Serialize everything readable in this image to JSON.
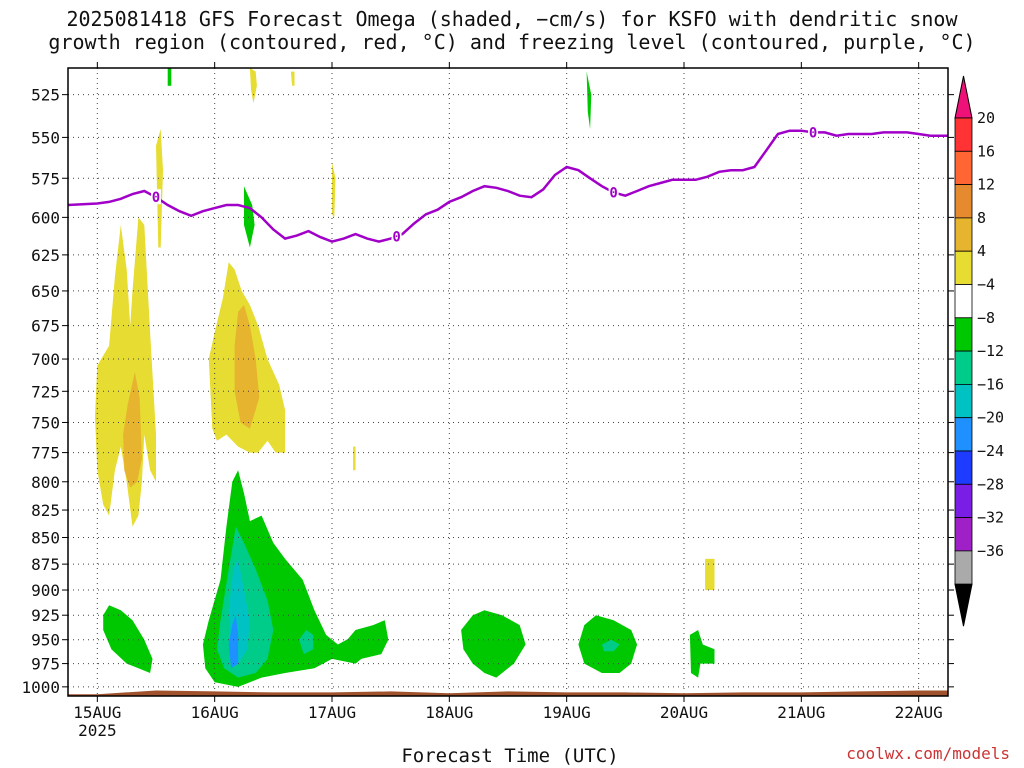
{
  "title_line1": "2025081418 GFS Forecast Omega (shaded, −cm/s) for KSFO with dendritic snow",
  "title_line2": "growth region (contoured, red, °C) and freezing level (contoured, purple, °C)",
  "credit": "coolwx.com/models",
  "chart_data": {
    "type": "heatmap",
    "title": "2025081418 GFS Forecast Omega (shaded, −cm/s) for KSFO with dendritic snow growth region (contoured, red, °C) and freezing level (contoured, purple, °C)",
    "xlabel": "Forecast Time (UTC)",
    "ylabel": "",
    "x_ticks": [
      {
        "label": "15AUG",
        "sublabel": "2025",
        "day": 15
      },
      {
        "label": "16AUG",
        "sublabel": "",
        "day": 16
      },
      {
        "label": "17AUG",
        "sublabel": "",
        "day": 17
      },
      {
        "label": "18AUG",
        "sublabel": "",
        "day": 18
      },
      {
        "label": "19AUG",
        "sublabel": "",
        "day": 19
      },
      {
        "label": "20AUG",
        "sublabel": "",
        "day": 20
      },
      {
        "label": "21AUG",
        "sublabel": "",
        "day": 21
      },
      {
        "label": "22AUG",
        "sublabel": "",
        "day": 22
      }
    ],
    "xlim": [
      14.75,
      22.25
    ],
    "y_ticks": [
      525,
      550,
      575,
      600,
      625,
      650,
      675,
      700,
      725,
      750,
      775,
      800,
      825,
      850,
      875,
      900,
      925,
      950,
      975,
      1000
    ],
    "ylim": [
      1010,
      510
    ],
    "y_scale": "log",
    "grid": true,
    "colorbar": {
      "labels": [
        "20",
        "16",
        "12",
        "8",
        "4",
        "−4",
        "−8",
        "−12",
        "−16",
        "−20",
        "−24",
        "−28",
        "−32",
        "−36"
      ],
      "colors": [
        "#ff3333",
        "#ff6633",
        "#e58a2e",
        "#e6b42e",
        "#e6dc32",
        "#ffffff",
        "#00c800",
        "#00cc8a",
        "#00c2c2",
        "#1e90ff",
        "#1e3cff",
        "#7a1ee6",
        "#a020c8",
        "#aaaaaa"
      ],
      "top_arrow_color": "#ee1177",
      "bottom_arrow_color": "#000000"
    },
    "freezing_level": {
      "label": "0",
      "color": "#a000c8",
      "x": [
        14.75,
        15.0,
        15.1,
        15.2,
        15.3,
        15.4,
        15.5,
        15.6,
        15.7,
        15.8,
        15.9,
        16.0,
        16.1,
        16.2,
        16.3,
        16.4,
        16.5,
        16.6,
        16.7,
        16.8,
        16.9,
        17.0,
        17.1,
        17.2,
        17.3,
        17.4,
        17.5,
        17.6,
        17.7,
        17.8,
        17.9,
        18.0,
        18.1,
        18.2,
        18.3,
        18.4,
        18.5,
        18.6,
        18.7,
        18.8,
        18.9,
        19.0,
        19.1,
        19.2,
        19.3,
        19.4,
        19.5,
        19.6,
        19.7,
        19.8,
        19.9,
        20.0,
        20.1,
        20.2,
        20.3,
        20.4,
        20.5,
        20.6,
        20.7,
        20.8,
        20.9,
        21.0,
        21.1,
        21.2,
        21.3,
        21.4,
        21.5,
        21.6,
        21.7,
        21.8,
        21.9,
        22.0,
        22.1,
        22.25
      ],
      "y": [
        592,
        591,
        590,
        588,
        585,
        583,
        587,
        592,
        596,
        599,
        596,
        594,
        592,
        592,
        594,
        600,
        608,
        614,
        612,
        609,
        613,
        616,
        614,
        611,
        614,
        616,
        614,
        611,
        604,
        598,
        595,
        590,
        587,
        583,
        580,
        581,
        583,
        586,
        587,
        582,
        573,
        568,
        570,
        575,
        580,
        584,
        586,
        583,
        580,
        578,
        576,
        576,
        576,
        574,
        571,
        570,
        570,
        568,
        558,
        548,
        546,
        546,
        547,
        547,
        549,
        548,
        548,
        548,
        547,
        547,
        547,
        548,
        549,
        549
      ]
    },
    "omega_regions": [
      {
        "value": 4,
        "color": "#e6dc32",
        "points": [
          [
            15.0,
            705
          ],
          [
            15.1,
            690
          ],
          [
            15.15,
            640
          ],
          [
            15.2,
            605
          ],
          [
            15.25,
            635
          ],
          [
            15.28,
            675
          ],
          [
            15.3,
            650
          ],
          [
            15.35,
            600
          ],
          [
            15.4,
            605
          ],
          [
            15.45,
            680
          ],
          [
            15.5,
            760
          ],
          [
            15.5,
            800
          ],
          [
            15.45,
            790
          ],
          [
            15.4,
            760
          ],
          [
            15.38,
            800
          ],
          [
            15.35,
            830
          ],
          [
            15.3,
            840
          ],
          [
            15.25,
            800
          ],
          [
            15.2,
            770
          ],
          [
            15.15,
            790
          ],
          [
            15.1,
            830
          ],
          [
            15.05,
            820
          ],
          [
            15.0,
            790
          ],
          [
            14.98,
            745
          ]
        ]
      },
      {
        "value": 8,
        "color": "#e6b42e",
        "points": [
          [
            15.22,
            760
          ],
          [
            15.26,
            735
          ],
          [
            15.32,
            710
          ],
          [
            15.36,
            730
          ],
          [
            15.38,
            780
          ],
          [
            15.34,
            800
          ],
          [
            15.28,
            805
          ],
          [
            15.23,
            790
          ]
        ]
      },
      {
        "value": 4,
        "color": "#e6dc32",
        "points": [
          [
            15.5,
            555
          ],
          [
            15.54,
            545
          ],
          [
            15.56,
            570
          ],
          [
            15.54,
            620
          ],
          [
            15.52,
            620
          ]
        ]
      },
      {
        "value": 4,
        "color": "#e6dc32",
        "points": [
          [
            15.95,
            700
          ],
          [
            16.0,
            680
          ],
          [
            16.07,
            655
          ],
          [
            16.12,
            630
          ],
          [
            16.17,
            635
          ],
          [
            16.23,
            650
          ],
          [
            16.3,
            660
          ],
          [
            16.37,
            675
          ],
          [
            16.45,
            700
          ],
          [
            16.55,
            720
          ],
          [
            16.6,
            740
          ],
          [
            16.6,
            775
          ],
          [
            16.52,
            775
          ],
          [
            16.45,
            765
          ],
          [
            16.37,
            775
          ],
          [
            16.3,
            775
          ],
          [
            16.2,
            770
          ],
          [
            16.1,
            760
          ],
          [
            16.02,
            765
          ],
          [
            15.98,
            755
          ]
        ]
      },
      {
        "value": 8,
        "color": "#e6b42e",
        "points": [
          [
            16.17,
            690
          ],
          [
            16.2,
            665
          ],
          [
            16.25,
            660
          ],
          [
            16.3,
            675
          ],
          [
            16.35,
            700
          ],
          [
            16.38,
            730
          ],
          [
            16.3,
            755
          ],
          [
            16.22,
            750
          ],
          [
            16.17,
            725
          ]
        ]
      },
      {
        "value": 4,
        "color": "#e6dc32",
        "points": [
          [
            16.3,
            510
          ],
          [
            16.35,
            512
          ],
          [
            16.36,
            520
          ],
          [
            16.33,
            530
          ],
          [
            16.31,
            522
          ]
        ]
      },
      {
        "value": 4,
        "color": "#e6dc32",
        "points": [
          [
            16.65,
            512
          ],
          [
            16.68,
            512
          ],
          [
            16.68,
            520
          ],
          [
            16.66,
            520
          ]
        ]
      },
      {
        "value": 4,
        "color": "#e6dc32",
        "points": [
          [
            17.0,
            565
          ],
          [
            17.03,
            575
          ],
          [
            17.02,
            600
          ],
          [
            17.0,
            598
          ]
        ]
      },
      {
        "value": 4,
        "color": "#e6dc32",
        "points": [
          [
            17.18,
            770
          ],
          [
            17.2,
            770
          ],
          [
            17.2,
            790
          ],
          [
            17.18,
            790
          ]
        ]
      },
      {
        "value": 4,
        "color": "#e6dc32",
        "points": [
          [
            20.18,
            870
          ],
          [
            20.26,
            870
          ],
          [
            20.26,
            900
          ],
          [
            20.18,
            900
          ]
        ]
      },
      {
        "value": -4,
        "color": "#00c800",
        "points": [
          [
            16.25,
            580
          ],
          [
            16.32,
            592
          ],
          [
            16.34,
            605
          ],
          [
            16.3,
            620
          ],
          [
            16.25,
            605
          ]
        ]
      },
      {
        "value": -4,
        "color": "#00c800",
        "points": [
          [
            15.6,
            510
          ],
          [
            15.63,
            510
          ],
          [
            15.63,
            520
          ],
          [
            15.6,
            520
          ]
        ]
      },
      {
        "value": -4,
        "color": "#00c800",
        "points": [
          [
            19.17,
            512
          ],
          [
            19.21,
            525
          ],
          [
            19.2,
            545
          ],
          [
            19.18,
            535
          ]
        ]
      },
      {
        "value": -4,
        "color": "#00c800",
        "points": [
          [
            15.05,
            925
          ],
          [
            15.1,
            915
          ],
          [
            15.2,
            920
          ],
          [
            15.3,
            930
          ],
          [
            15.4,
            950
          ],
          [
            15.47,
            970
          ],
          [
            15.45,
            985
          ],
          [
            15.35,
            980
          ],
          [
            15.25,
            975
          ],
          [
            15.12,
            960
          ],
          [
            15.05,
            940
          ]
        ]
      },
      {
        "value": -4,
        "color": "#00c800",
        "points": [
          [
            15.9,
            955
          ],
          [
            15.95,
            930
          ],
          [
            16.05,
            890
          ],
          [
            16.1,
            840
          ],
          [
            16.15,
            800
          ],
          [
            16.2,
            790
          ],
          [
            16.25,
            810
          ],
          [
            16.3,
            835
          ],
          [
            16.4,
            830
          ],
          [
            16.5,
            855
          ],
          [
            16.6,
            870
          ],
          [
            16.75,
            890
          ],
          [
            16.85,
            920
          ],
          [
            16.95,
            945
          ],
          [
            17.05,
            955
          ],
          [
            17.2,
            945
          ],
          [
            17.35,
            940
          ],
          [
            17.35,
            960
          ],
          [
            17.2,
            975
          ],
          [
            17.0,
            970
          ],
          [
            16.85,
            980
          ],
          [
            16.6,
            985
          ],
          [
            16.4,
            990
          ],
          [
            16.2,
            1000
          ],
          [
            16.0,
            995
          ],
          [
            15.92,
            980
          ]
        ]
      },
      {
        "value": -8,
        "color": "#00cc8a",
        "points": [
          [
            16.05,
            930
          ],
          [
            16.12,
            880
          ],
          [
            16.18,
            840
          ],
          [
            16.25,
            855
          ],
          [
            16.35,
            880
          ],
          [
            16.45,
            910
          ],
          [
            16.5,
            940
          ],
          [
            16.45,
            970
          ],
          [
            16.35,
            985
          ],
          [
            16.2,
            990
          ],
          [
            16.08,
            980
          ],
          [
            16.02,
            960
          ]
        ]
      },
      {
        "value": -12,
        "color": "#00c2c2",
        "points": [
          [
            16.12,
            920
          ],
          [
            16.16,
            880
          ],
          [
            16.2,
            870
          ],
          [
            16.25,
            900
          ],
          [
            16.3,
            930
          ],
          [
            16.28,
            960
          ],
          [
            16.2,
            975
          ],
          [
            16.13,
            965
          ]
        ]
      },
      {
        "value": -16,
        "color": "#1e90ff",
        "points": [
          [
            16.12,
            955
          ],
          [
            16.15,
            935
          ],
          [
            16.18,
            925
          ],
          [
            16.2,
            945
          ],
          [
            16.2,
            975
          ],
          [
            16.14,
            980
          ]
        ]
      },
      {
        "value": -8,
        "color": "#00cc8a",
        "points": [
          [
            16.72,
            950
          ],
          [
            16.78,
            940
          ],
          [
            16.84,
            945
          ],
          [
            16.84,
            960
          ],
          [
            16.76,
            965
          ]
        ]
      },
      {
        "value": -4,
        "color": "#00c800",
        "points": [
          [
            18.1,
            940
          ],
          [
            18.2,
            925
          ],
          [
            18.3,
            920
          ],
          [
            18.45,
            925
          ],
          [
            18.6,
            935
          ],
          [
            18.65,
            955
          ],
          [
            18.55,
            975
          ],
          [
            18.4,
            990
          ],
          [
            18.3,
            985
          ],
          [
            18.2,
            975
          ],
          [
            18.12,
            960
          ]
        ]
      },
      {
        "value": -4,
        "color": "#00c800",
        "points": [
          [
            19.1,
            955
          ],
          [
            19.15,
            935
          ],
          [
            19.25,
            925
          ],
          [
            19.4,
            930
          ],
          [
            19.55,
            940
          ],
          [
            19.6,
            955
          ],
          [
            19.55,
            975
          ],
          [
            19.45,
            985
          ],
          [
            19.3,
            985
          ],
          [
            19.15,
            975
          ]
        ]
      },
      {
        "value": -8,
        "color": "#00cc8a",
        "points": [
          [
            19.3,
            955
          ],
          [
            19.38,
            950
          ],
          [
            19.45,
            955
          ],
          [
            19.4,
            962
          ],
          [
            19.32,
            962
          ]
        ]
      },
      {
        "value": -4,
        "color": "#00c800",
        "points": [
          [
            20.05,
            945
          ],
          [
            20.12,
            940
          ],
          [
            20.16,
            955
          ],
          [
            20.26,
            960
          ],
          [
            20.26,
            975
          ],
          [
            20.14,
            975
          ],
          [
            20.12,
            990
          ],
          [
            20.06,
            985
          ]
        ]
      },
      {
        "value": -4,
        "color": "#00c800",
        "points": [
          [
            17.13,
            950
          ],
          [
            17.2,
            940
          ],
          [
            17.35,
            935
          ],
          [
            17.45,
            930
          ],
          [
            17.48,
            950
          ],
          [
            17.42,
            965
          ],
          [
            17.25,
            970
          ],
          [
            17.13,
            970
          ]
        ]
      }
    ],
    "surface": {
      "color": "#a0522d",
      "x": [
        14.75,
        15.0,
        15.5,
        16.0,
        16.5,
        17.0,
        17.5,
        18.0,
        18.5,
        19.0,
        19.5,
        20.0,
        20.5,
        21.0,
        21.5,
        22.0,
        22.25
      ],
      "y": [
        1008,
        1008,
        1004,
        1005,
        1006,
        1006,
        1005,
        1007,
        1005,
        1006,
        1006,
        1007,
        1006,
        1006,
        1005,
        1004,
        1004
      ]
    }
  }
}
